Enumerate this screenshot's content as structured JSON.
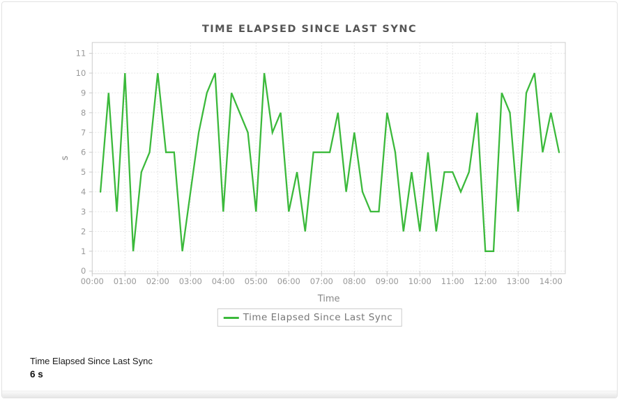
{
  "card": {
    "title": "TIME ELAPSED SINCE LAST SYNC"
  },
  "legend": {
    "label": "Time Elapsed Since Last Sync"
  },
  "footer_info": {
    "label": "Time Elapsed Since Last Sync",
    "value": "6 s"
  },
  "colors": {
    "line": "#3bb93b",
    "grid": "#e6e6e6",
    "border": "#cccccc",
    "tick_text": "#999999",
    "axis_label": "#888888",
    "title_text": "#555555"
  },
  "chart_data": {
    "type": "line",
    "title": "TIME ELAPSED SINCE LAST SYNC",
    "xlabel": "Time",
    "ylabel": "s",
    "grid": true,
    "legend_position": "bottom",
    "x_ticks": [
      "00:00",
      "01:00",
      "02:00",
      "03:00",
      "04:00",
      "05:00",
      "06:00",
      "07:00",
      "08:00",
      "09:00",
      "10:00",
      "11:00",
      "12:00",
      "13:00",
      "14:00"
    ],
    "y_ticks": [
      0,
      1,
      2,
      3,
      4,
      5,
      6,
      7,
      8,
      9,
      10,
      11
    ],
    "ylim": [
      -0.15,
      11.55
    ],
    "xlim_hours": [
      0,
      14.44
    ],
    "series": [
      {
        "name": "Time Elapsed Since Last Sync",
        "color": "#3bb93b",
        "x": [
          "00:15",
          "00:30",
          "00:45",
          "01:00",
          "01:15",
          "01:30",
          "01:45",
          "02:00",
          "02:15",
          "02:30",
          "02:45",
          "03:00",
          "03:15",
          "03:30",
          "03:45",
          "04:00",
          "04:15",
          "04:30",
          "04:45",
          "05:00",
          "05:15",
          "05:30",
          "05:45",
          "06:00",
          "06:15",
          "06:30",
          "06:45",
          "07:00",
          "07:15",
          "07:30",
          "07:45",
          "08:00",
          "08:15",
          "08:30",
          "08:45",
          "09:00",
          "09:15",
          "09:30",
          "09:45",
          "10:00",
          "10:15",
          "10:30",
          "10:45",
          "11:00",
          "11:15",
          "11:30",
          "11:45",
          "12:00",
          "12:15",
          "12:30",
          "12:45",
          "13:00",
          "13:15",
          "13:30",
          "13:45",
          "14:00",
          "14:15"
        ],
        "values": [
          4,
          9,
          3,
          10,
          1,
          5,
          6,
          10,
          6,
          6,
          1,
          4,
          7,
          9,
          10,
          3,
          9,
          8,
          7,
          3,
          10,
          7,
          8,
          3,
          5,
          2,
          6,
          6,
          6,
          8,
          4,
          7,
          4,
          3,
          3,
          8,
          6,
          2,
          5,
          2,
          6,
          2,
          5,
          5,
          4,
          5,
          8,
          1,
          1,
          9,
          8,
          3,
          9,
          10,
          6,
          8,
          6
        ]
      }
    ]
  }
}
